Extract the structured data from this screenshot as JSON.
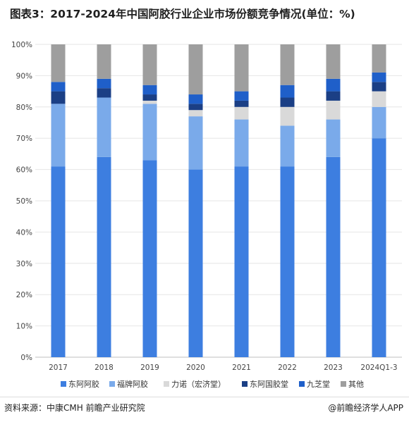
{
  "title": "图表3：2017-2024年中国阿胶行业企业市场份额竞争情况(单位：%)",
  "source": "资料来源：中康CMH 前瞻产业研究院",
  "brand": "@前瞻经济学人APP",
  "chart_data": {
    "type": "bar",
    "stacked": true,
    "categories": [
      "2017",
      "2018",
      "2019",
      "2020",
      "2021",
      "2022",
      "2023",
      "2024Q1-3"
    ],
    "y_ticks": [
      "0%",
      "10%",
      "20%",
      "30%",
      "40%",
      "50%",
      "60%",
      "70%",
      "80%",
      "90%",
      "100%"
    ],
    "ylim": [
      0,
      100
    ],
    "grid": true,
    "legend_position": "bottom",
    "series": [
      {
        "name": "东阿阿胶",
        "color": "#3d7ee0",
        "values": [
          61,
          64,
          63,
          60,
          61,
          61,
          64,
          70
        ]
      },
      {
        "name": "福牌阿胶",
        "color": "#7aaaea",
        "values": [
          20,
          19,
          18,
          17,
          15,
          13,
          12,
          10
        ]
      },
      {
        "name": "力诺（宏济堂）",
        "color": "#d9d9d9",
        "values": [
          0,
          0,
          1,
          2,
          4,
          6,
          6,
          5
        ]
      },
      {
        "name": "东阿国胶堂",
        "color": "#1b3f85",
        "values": [
          4,
          3,
          2,
          2,
          2,
          3,
          3,
          3
        ]
      },
      {
        "name": "九芝堂",
        "color": "#1f5fc9",
        "values": [
          3,
          3,
          3,
          3,
          3,
          4,
          4,
          3
        ]
      },
      {
        "name": "其他",
        "color": "#9e9e9e",
        "values": [
          12,
          11,
          13,
          16,
          15,
          13,
          11,
          9
        ]
      }
    ]
  }
}
